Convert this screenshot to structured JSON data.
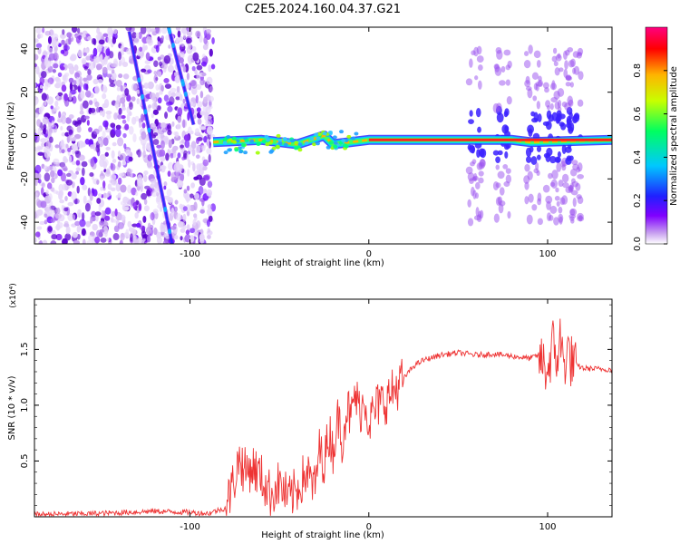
{
  "title": "C2E5.2024.160.04.37.G21",
  "chart_data": [
    {
      "type": "heatmap",
      "id": "spectrogram",
      "xlabel": "Height of straight line (km)",
      "ylabel": "Frequency (Hz)",
      "xlim": [
        -187,
        136
      ],
      "ylim": [
        -50,
        50
      ],
      "x_ticks": [
        -100,
        0,
        100
      ],
      "y_ticks": [
        -40,
        -20,
        0,
        20,
        40
      ],
      "colorbar": {
        "label": "Normalized spectral amplitude",
        "range": [
          0,
          1
        ],
        "ticks": [
          0.0,
          0.2,
          0.4,
          0.6,
          0.8
        ],
        "colormap": [
          "#ffffff",
          "#c8a0f0",
          "#8000ff",
          "#2020ff",
          "#00c8ff",
          "#00ff60",
          "#c8ff00",
          "#ffb400",
          "#ff0000",
          "#ff0080"
        ]
      },
      "features": {
        "noise_region_x": [
          -187,
          -87
        ],
        "noise_region_freq": [
          -50,
          50
        ],
        "carrier_band": [
          {
            "x": -87,
            "freq": -3
          },
          {
            "x": -60,
            "freq": -2
          },
          {
            "x": -40,
            "freq": -4
          },
          {
            "x": -25,
            "freq": 0
          },
          {
            "x": -20,
            "freq": -4
          },
          {
            "x": 0,
            "freq": -2
          },
          {
            "x": 40,
            "freq": -2
          },
          {
            "x": 80,
            "freq": -2
          },
          {
            "x": 90,
            "freq": -3
          },
          {
            "x": 136,
            "freq": -2
          }
        ],
        "diagonal_streaks": [
          {
            "x1": -134,
            "f1": 48,
            "x2": -110,
            "f2": -50
          },
          {
            "x1": -112,
            "f1": 50,
            "x2": -98,
            "f2": 5
          }
        ],
        "bursts_x": [
          60,
          75,
          92,
          103,
          110,
          115
        ]
      }
    },
    {
      "type": "line",
      "id": "snr",
      "xlabel": "Height of straight line (km)",
      "ylabel": "SNR (10 * v/v)",
      "y_multiplier": "(x10⁴)",
      "xlim": [
        -187,
        136
      ],
      "ylim": [
        0.0,
        1.95
      ],
      "x_ticks": [
        -100,
        0,
        100
      ],
      "y_ticks": [
        0.5,
        1.0,
        1.5
      ],
      "series": [
        {
          "color": "#ee3333",
          "x": [
            -187,
            -150,
            -120,
            -100,
            -90,
            -80,
            -75,
            -72,
            -70,
            -65,
            -60,
            -55,
            -50,
            -45,
            -40,
            -35,
            -30,
            -28,
            -25,
            -22,
            -20,
            -17,
            -15,
            -12,
            -10,
            -8,
            -5,
            -2,
            0,
            5,
            10,
            15,
            20,
            25,
            30,
            40,
            50,
            60,
            70,
            80,
            90,
            95,
            100,
            103,
            105,
            107,
            109,
            111,
            113,
            116,
            120,
            136
          ],
          "y": [
            0.02,
            0.03,
            0.05,
            0.04,
            0.03,
            0.08,
            0.35,
            0.55,
            0.4,
            0.45,
            0.35,
            0.2,
            0.3,
            0.15,
            0.25,
            0.4,
            0.25,
            0.6,
            0.5,
            0.75,
            0.6,
            0.9,
            0.7,
            1.0,
            0.85,
            1.1,
            0.95,
            1.05,
            0.85,
            1.0,
            1.05,
            1.15,
            1.25,
            1.35,
            1.4,
            1.45,
            1.47,
            1.45,
            1.46,
            1.44,
            1.42,
            1.45,
            1.3,
            1.55,
            1.4,
            1.6,
            1.35,
            1.5,
            1.4,
            1.36,
            1.33,
            1.32
          ]
        }
      ]
    }
  ]
}
